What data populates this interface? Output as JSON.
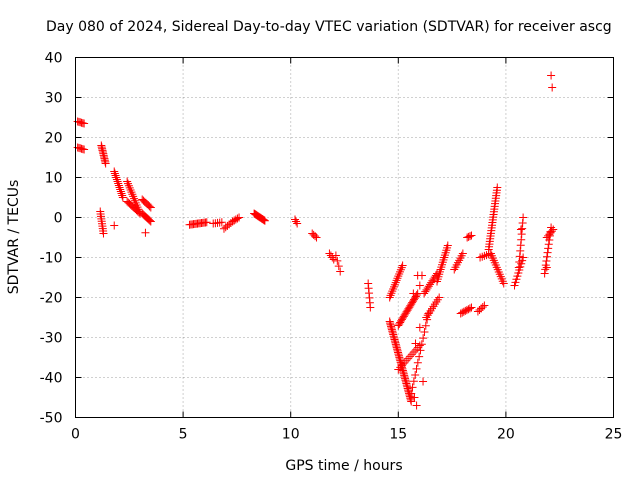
{
  "chart_data": {
    "type": "scatter",
    "title": "Day 080 of 2024, Sidereal Day-to-day VTEC variation (SDTVAR) for receiver ascg",
    "xlabel": "GPS time / hours",
    "ylabel": "SDTVAR / TECUs",
    "xlim": [
      0,
      25
    ],
    "ylim": [
      -50,
      40
    ],
    "xticks": [
      0,
      5,
      10,
      15,
      20,
      25
    ],
    "yticks": [
      -50,
      -40,
      -30,
      -20,
      -10,
      0,
      10,
      20,
      30,
      40
    ],
    "xtick_labels": [
      "0",
      "5",
      "10",
      "15",
      "20",
      "25"
    ],
    "ytick_labels": [
      "-50",
      "-40",
      "-30",
      "-20",
      "-10",
      "0",
      "10",
      "20",
      "30",
      "40"
    ],
    "grid": true,
    "marker": "+",
    "color": "#ff0000",
    "segments": [
      {
        "x": [
          0.1,
          0.4
        ],
        "y": [
          24,
          23.5
        ],
        "n": 6
      },
      {
        "x": [
          0.1,
          0.4
        ],
        "y": [
          17.5,
          17
        ],
        "n": 6
      },
      {
        "x": [
          1.2,
          1.4
        ],
        "y": [
          18,
          13.5
        ],
        "n": 12
      },
      {
        "x": [
          1.15,
          1.3
        ],
        "y": [
          1.5,
          -4
        ],
        "n": 10
      },
      {
        "x": [
          1.8,
          2.2
        ],
        "y": [
          11.5,
          5
        ],
        "n": 14
      },
      {
        "x": [
          2.4,
          3.0
        ],
        "y": [
          9,
          1
        ],
        "n": 16
      },
      {
        "x": [
          2.4,
          3.0
        ],
        "y": [
          4,
          1
        ],
        "n": 12
      },
      {
        "x": [
          3.1,
          3.5
        ],
        "y": [
          4.5,
          2.5
        ],
        "n": 8
      },
      {
        "x": [
          3.1,
          3.5
        ],
        "y": [
          1,
          -1
        ],
        "n": 10
      },
      {
        "x": [
          5.3,
          6.1
        ],
        "y": [
          -1.8,
          -1.2
        ],
        "n": 14
      },
      {
        "x": [
          6.4,
          6.8
        ],
        "y": [
          -1.5,
          -1.2
        ],
        "n": 5
      },
      {
        "x": [
          6.9,
          7.3
        ],
        "y": [
          -2.8,
          -1.0
        ],
        "n": 6
      },
      {
        "x": [
          7.3,
          7.6
        ],
        "y": [
          -1.0,
          0.0
        ],
        "n": 5
      },
      {
        "x": [
          8.3,
          8.8
        ],
        "y": [
          1.0,
          -0.8
        ],
        "n": 14
      },
      {
        "x": [
          10.2,
          10.3
        ],
        "y": [
          -0.5,
          -1.5
        ],
        "n": 3
      },
      {
        "x": [
          11.0,
          11.2
        ],
        "y": [
          -4.0,
          -5.0
        ],
        "n": 4
      },
      {
        "x": [
          11.8,
          12.0
        ],
        "y": [
          -9.0,
          -10.5
        ],
        "n": 4
      },
      {
        "x": [
          12.1,
          12.3
        ],
        "y": [
          -9.5,
          -13.5
        ],
        "n": 4
      },
      {
        "x": [
          13.6,
          13.7
        ],
        "y": [
          -16.5,
          -22.5
        ],
        "n": 6
      },
      {
        "x": [
          14.6,
          15.2
        ],
        "y": [
          -20,
          -12
        ],
        "n": 16
      },
      {
        "x": [
          14.6,
          15.6
        ],
        "y": [
          -26,
          -46
        ],
        "n": 50
      },
      {
        "x": [
          15.0,
          16.0
        ],
        "y": [
          -38,
          -32
        ],
        "n": 12
      },
      {
        "x": [
          15.0,
          15.9
        ],
        "y": [
          -27,
          -19
        ],
        "n": 22
      },
      {
        "x": [
          15.6,
          16.4
        ],
        "y": [
          -44,
          -24
        ],
        "n": 14
      },
      {
        "x": [
          16.2,
          16.8
        ],
        "y": [
          -19,
          -14
        ],
        "n": 12
      },
      {
        "x": [
          16.3,
          16.9
        ],
        "y": [
          -25,
          -20
        ],
        "n": 10
      },
      {
        "x": [
          16.8,
          17.3
        ],
        "y": [
          -16,
          -7
        ],
        "n": 16
      },
      {
        "x": [
          17.6,
          18.0
        ],
        "y": [
          -13,
          -9
        ],
        "n": 8
      },
      {
        "x": [
          17.9,
          18.4
        ],
        "y": [
          -24,
          -22.5
        ],
        "n": 8
      },
      {
        "x": [
          18.2,
          18.4
        ],
        "y": [
          -5,
          -4.5
        ],
        "n": 4
      },
      {
        "x": [
          18.7,
          19.0
        ],
        "y": [
          -23.5,
          -22
        ],
        "n": 5
      },
      {
        "x": [
          18.8,
          19.3
        ],
        "y": [
          -10,
          -9
        ],
        "n": 6
      },
      {
        "x": [
          19.2,
          19.6
        ],
        "y": [
          -8,
          7.5
        ],
        "n": 24
      },
      {
        "x": [
          19.3,
          19.9
        ],
        "y": [
          -9,
          -16.5
        ],
        "n": 14
      },
      {
        "x": [
          20.4,
          20.8
        ],
        "y": [
          -17,
          -10
        ],
        "n": 10
      },
      {
        "x": [
          20.6,
          20.8
        ],
        "y": [
          -12.5,
          0
        ],
        "n": 10
      },
      {
        "x": [
          21.8,
          22.1
        ],
        "y": [
          -14,
          -2.5
        ],
        "n": 12
      },
      {
        "x": [
          21.9,
          22.2
        ],
        "y": [
          -5,
          -3
        ],
        "n": 6
      }
    ],
    "points": [
      {
        "x": 1.8,
        "y": -2
      },
      {
        "x": 3.25,
        "y": -3.8
      },
      {
        "x": 15.85,
        "y": -47
      },
      {
        "x": 15.75,
        "y": -45
      },
      {
        "x": 15.7,
        "y": -19
      },
      {
        "x": 15.9,
        "y": -14.5
      },
      {
        "x": 16.1,
        "y": -14.5
      },
      {
        "x": 16.0,
        "y": -17
      },
      {
        "x": 16.15,
        "y": -41
      },
      {
        "x": 16.0,
        "y": -27.5
      },
      {
        "x": 15.8,
        "y": -31.5
      },
      {
        "x": 22.1,
        "y": 35.5
      },
      {
        "x": 22.15,
        "y": 32.5
      },
      {
        "x": 21.9,
        "y": -12.5
      },
      {
        "x": 20.7,
        "y": -3
      }
    ]
  }
}
